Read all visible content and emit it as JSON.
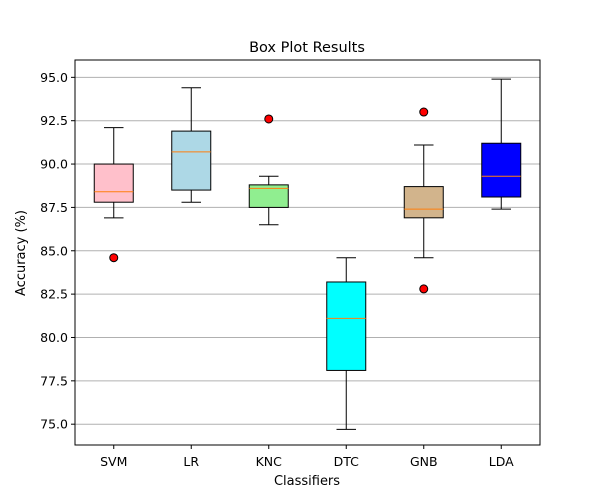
{
  "chart_data": {
    "type": "box",
    "title": "Box Plot Results",
    "xlabel": "Classifiers",
    "ylabel": "Accuracy (%)",
    "ylim": [
      73.8,
      96.0
    ],
    "yticks": [
      "75.0",
      "77.5",
      "80.0",
      "82.5",
      "85.0",
      "87.5",
      "90.0",
      "92.5",
      "95.0"
    ],
    "grid": "horizontal",
    "median_color": "#ff7f0e",
    "outlier_color": "#ff0000",
    "categories": [
      "SVM",
      "LR",
      "KNC",
      "DTC",
      "GNB",
      "LDA"
    ],
    "boxes": [
      {
        "category": "SVM",
        "whisker_low": 86.9,
        "q1": 87.8,
        "median": 88.4,
        "q3": 90.0,
        "whisker_high": 92.1,
        "outliers": [
          84.6
        ],
        "fill": "#ffc0cb"
      },
      {
        "category": "LR",
        "whisker_low": 87.8,
        "q1": 88.5,
        "median": 90.7,
        "q3": 91.9,
        "whisker_high": 94.4,
        "outliers": [],
        "fill": "#add8e6"
      },
      {
        "category": "KNC",
        "whisker_low": 86.5,
        "q1": 87.5,
        "median": 88.6,
        "q3": 88.8,
        "whisker_high": 89.3,
        "outliers": [
          92.6
        ],
        "fill": "#90ee90"
      },
      {
        "category": "DTC",
        "whisker_low": 74.7,
        "q1": 78.1,
        "median": 81.1,
        "q3": 83.2,
        "whisker_high": 84.6,
        "outliers": [],
        "fill": "#00ffff"
      },
      {
        "category": "GNB",
        "whisker_low": 84.6,
        "q1": 86.9,
        "median": 87.4,
        "q3": 88.7,
        "whisker_high": 91.1,
        "outliers": [
          93.0,
          82.8
        ],
        "fill": "#d2b48c"
      },
      {
        "category": "LDA",
        "whisker_low": 87.4,
        "q1": 88.1,
        "median": 89.3,
        "q3": 91.2,
        "whisker_high": 94.9,
        "outliers": [],
        "fill": "#0000ff"
      }
    ]
  }
}
